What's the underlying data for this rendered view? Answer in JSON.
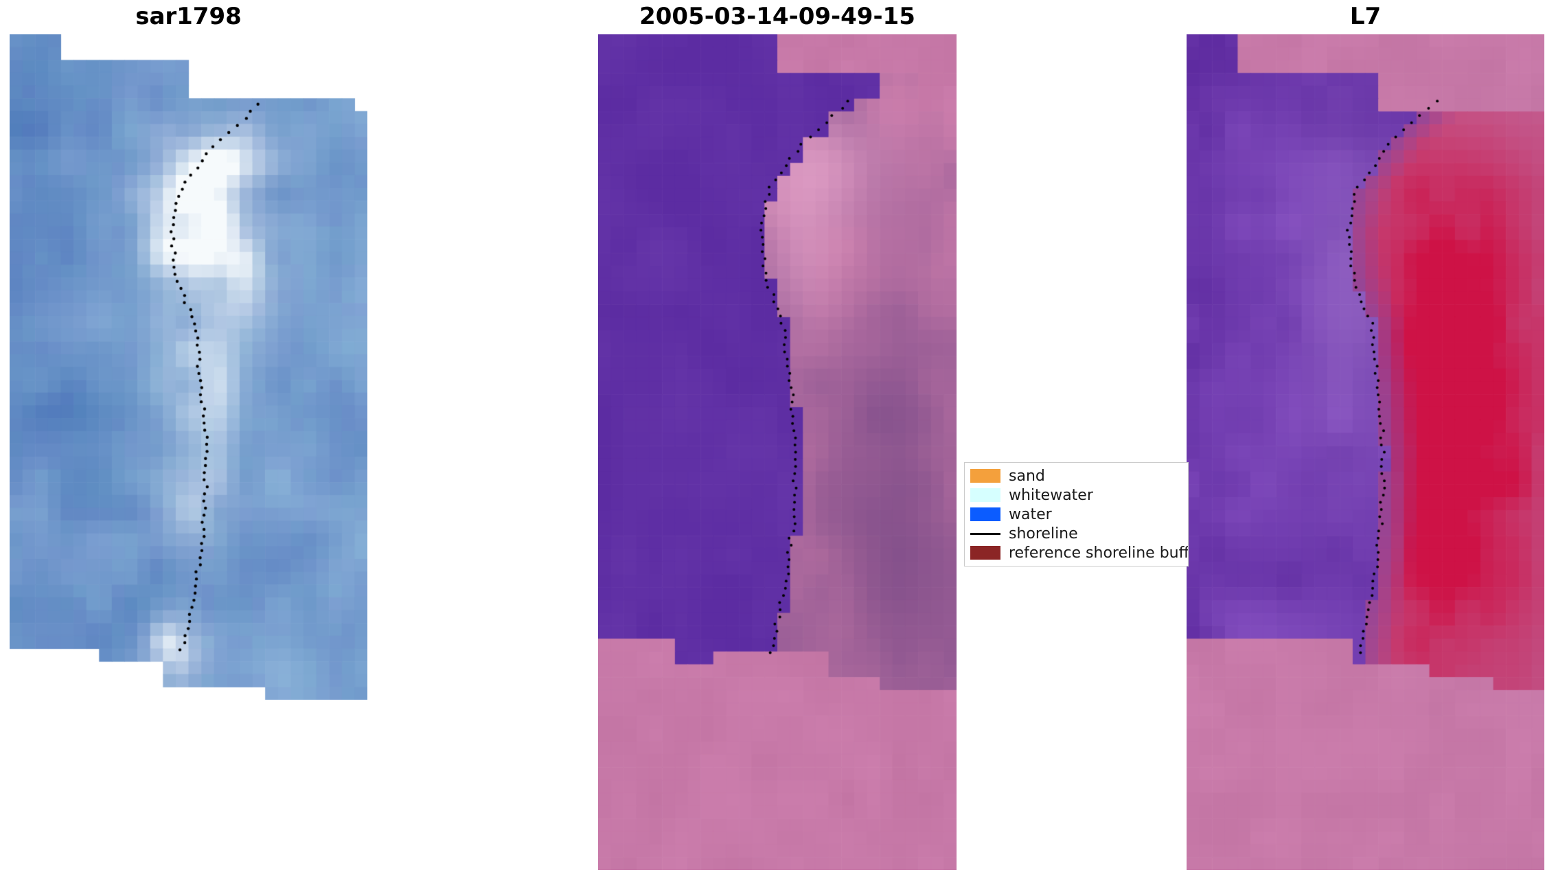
{
  "figure": {
    "background": "#ffffff"
  },
  "panels": [
    {
      "title": "sar1798"
    },
    {
      "title": "2005-03-14-09-49-15"
    },
    {
      "title": "L7"
    }
  ],
  "legend": {
    "items": [
      {
        "label": "sand",
        "color": "#f4a03c",
        "type": "patch"
      },
      {
        "label": "whitewater",
        "color": "#d6ffff",
        "type": "patch"
      },
      {
        "label": "water",
        "color": "#0b5cff",
        "type": "patch"
      },
      {
        "label": "shoreline",
        "color": "#000000",
        "type": "line"
      },
      {
        "label": "reference shoreline buffer",
        "color": "#8b2525",
        "type": "patch"
      }
    ]
  },
  "chart_data": {
    "type": "heatmap",
    "panels": [
      {
        "title": "sar1798",
        "palette": {
          "water_dark": "#3a68b0",
          "water_light": "#96bade",
          "whitewater": "#f6fafc"
        }
      },
      {
        "title": "2005-03-14-09-49-15",
        "palette": {
          "water_class": "#5c2ca2",
          "land_light": "#ca7caa",
          "land_dark": "#7c4c8c",
          "mask_pink": "#c779a8"
        }
      },
      {
        "title": "L7",
        "palette": {
          "water_class": "#6c31a8",
          "land_red": "#ce1246",
          "land_pink": "#c05488",
          "mask_pink": "#c779a8"
        }
      }
    ],
    "shoreline_dot_color": "#000000",
    "shoreline_path": [
      [
        0.0,
        0.7
      ],
      [
        0.08,
        0.565
      ],
      [
        0.16,
        0.475
      ],
      [
        0.24,
        0.452
      ],
      [
        0.32,
        0.468
      ],
      [
        0.4,
        0.515
      ],
      [
        0.52,
        0.538
      ],
      [
        0.64,
        0.55
      ],
      [
        0.76,
        0.545
      ],
      [
        0.86,
        0.525
      ],
      [
        0.94,
        0.5
      ],
      [
        1.0,
        0.482
      ]
    ]
  }
}
